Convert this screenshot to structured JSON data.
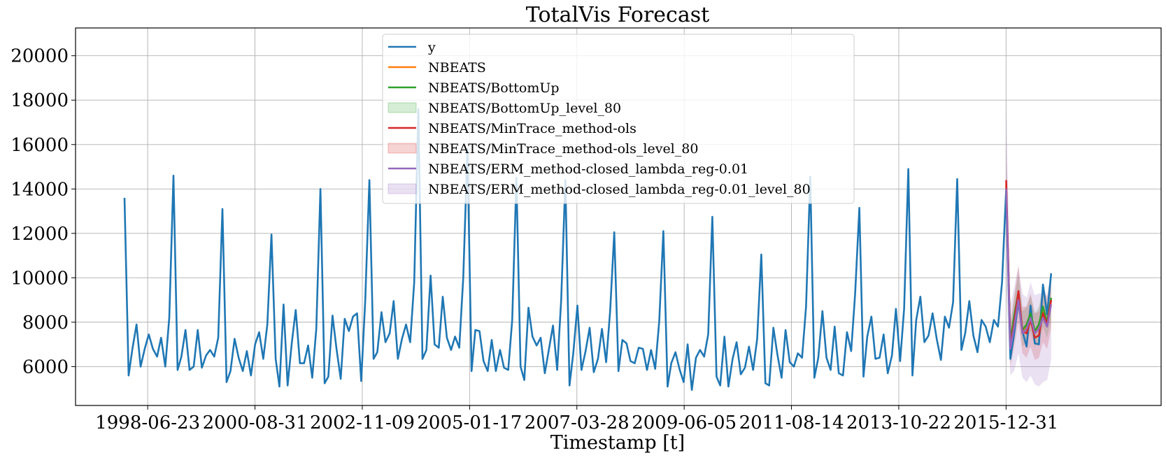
{
  "chart_data": {
    "type": "line",
    "title": "TotalVis Forecast",
    "xlabel": "Timestamp [t]",
    "ylabel": "",
    "x_tick_labels": [
      "1998-06-23",
      "2000-08-31",
      "2002-11-09",
      "2005-01-17",
      "2007-03-28",
      "2009-06-05",
      "2011-08-14",
      "2013-10-22",
      "2015-12-31"
    ],
    "y_ticks": [
      6000,
      8000,
      10000,
      12000,
      14000,
      16000,
      18000,
      20000
    ],
    "xlim": [
      "1997-01-01",
      "2019-03-01"
    ],
    "ylim": [
      4250,
      21250
    ],
    "grid": true,
    "legend_location": "top-center",
    "series": [
      {
        "name": "y",
        "color": "#1f77b4",
        "start": "1998-01",
        "values": [
          13600,
          5600,
          6800,
          7900,
          6000,
          6800,
          7450,
          6800,
          6450,
          7300,
          6000,
          8200,
          14600,
          5850,
          6450,
          7650,
          5850,
          6000,
          7650,
          5950,
          6500,
          6750,
          6450,
          7300,
          13100,
          5300,
          5800,
          7250,
          6400,
          5800,
          6700,
          5600,
          7000,
          7550,
          6350,
          7900,
          11950,
          6350,
          5100,
          8800,
          5150,
          7050,
          8550,
          6150,
          6150,
          6950,
          5500,
          7700,
          14000,
          5250,
          5550,
          8300,
          6800,
          5450,
          8150,
          7600,
          8250,
          8400,
          5350,
          9000,
          14400,
          6350,
          6650,
          8450,
          7100,
          7500,
          8950,
          6350,
          7250,
          7900,
          7100,
          9800,
          17600,
          6350,
          6750,
          10100,
          7000,
          6850,
          9150,
          7300,
          6750,
          7350,
          6850,
          10000,
          15800,
          5800,
          7650,
          7600,
          6250,
          5800,
          7200,
          5800,
          6750,
          5950,
          5850,
          8100,
          14500,
          6000,
          5400,
          8650,
          7350,
          6950,
          7300,
          5700,
          6800,
          7850,
          5850,
          9000,
          14400,
          5150,
          6600,
          8750,
          5850,
          6700,
          7750,
          5750,
          6350,
          7700,
          6200,
          8500,
          12050,
          5800,
          7200,
          7050,
          6250,
          6150,
          6850,
          6800,
          5850,
          6750,
          5900,
          8050,
          12100,
          5100,
          6150,
          6650,
          5900,
          5300,
          7000,
          4950,
          6400,
          6750,
          6450,
          7450,
          12750,
          5550,
          5150,
          7350,
          5100,
          6350,
          7100,
          5650,
          5950,
          6900,
          5850,
          7250,
          11050,
          5250,
          5150,
          7750,
          6550,
          5500,
          7650,
          6200,
          6000,
          6600,
          6400,
          8700,
          14550,
          5500,
          6400,
          8500,
          6400,
          5850,
          7800,
          5700,
          5600,
          7550,
          6700,
          9300,
          13150,
          5550,
          7350,
          8250,
          6350,
          6400,
          7450,
          5700,
          6500,
          8600,
          6250,
          8600,
          14900,
          5600,
          8100,
          9150,
          7100,
          7400,
          8400,
          7250,
          6300,
          8250,
          7750,
          8900,
          14450,
          6750,
          7500,
          8950,
          7400,
          6650,
          8100,
          7800,
          7100,
          8100,
          7800,
          9800,
          14000,
          6350,
          7500,
          8950,
          7600,
          6900,
          8750,
          7050,
          7000,
          9700,
          8350,
          10200
        ]
      },
      {
        "name": "NBEATS",
        "color": "#ff7f0e",
        "start": "2016-01",
        "values": [
          14200,
          7000,
          8200,
          9200,
          7500,
          7900,
          8300,
          7500,
          7800,
          8500,
          7900,
          9000
        ]
      },
      {
        "name": "NBEATS/BottomUp",
        "color": "#2ca02c",
        "start": "2016-01",
        "values": [
          13900,
          7150,
          8300,
          9350,
          7650,
          7900,
          8400,
          7600,
          7900,
          8700,
          8000,
          9100
        ],
        "interval_name": "NBEATS/BottomUp_level_80",
        "interval_color": "#2ca02c",
        "lower": [
          12900,
          6500,
          7500,
          8500,
          6900,
          7100,
          7600,
          6900,
          7100,
          7800,
          7300,
          8100
        ],
        "upper": [
          15000,
          7900,
          9100,
          10200,
          8500,
          8700,
          9200,
          8400,
          8700,
          9600,
          8800,
          10000
        ]
      },
      {
        "name": "NBEATS/MinTrace_method-ols",
        "color": "#d62728",
        "start": "2016-01",
        "values": [
          14400,
          6900,
          8000,
          9400,
          7600,
          7500,
          8100,
          7300,
          7400,
          8400,
          7900,
          9000
        ],
        "interval_name": "NBEATS/MinTrace_method-ols_level_80",
        "interval_color": "#d62728",
        "lower": [
          12900,
          6000,
          6900,
          8000,
          6600,
          6400,
          6900,
          6300,
          6400,
          7100,
          6800,
          7700
        ],
        "upper": [
          15900,
          7900,
          9200,
          10600,
          8700,
          8700,
          9300,
          8400,
          8500,
          9700,
          9100,
          10300
        ]
      },
      {
        "name": "NBEATS/ERM_method-closed_lambda_reg-0.01",
        "color": "#9467bd",
        "start": "2016-01",
        "values": [
          14000,
          6800,
          7800,
          9000,
          7500,
          7700,
          8200,
          7500,
          7700,
          8200,
          7800,
          8800
        ],
        "interval_name": "NBEATS/ERM_method-closed_lambda_reg-0.01_level_80",
        "interval_color": "#9467bd",
        "lower": [
          9500,
          5600,
          5800,
          6600,
          5500,
          5300,
          5600,
          5200,
          5100,
          5300,
          5400,
          6300
        ],
        "upper": [
          18200,
          8800,
          9600,
          10500,
          9300,
          9100,
          9800,
          9200,
          9300,
          9300,
          9200,
          10300
        ]
      }
    ]
  }
}
